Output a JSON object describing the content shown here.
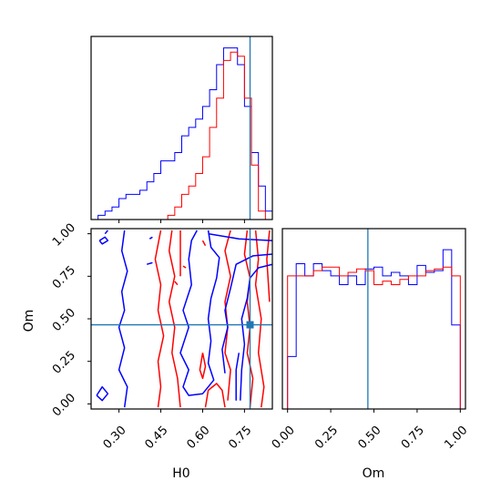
{
  "chart_data": {
    "type": "corner",
    "colors": {
      "series_a": "#0000ff",
      "series_b": "#ff0000",
      "truth": "#1f77b4"
    },
    "truth": {
      "H0": 0.77,
      "Om": 0.465
    },
    "panels": [
      {
        "id": "h0_hist",
        "type": "histogram",
        "xlim": [
          0.2,
          0.85
        ],
        "bins": [
          0.2,
          0.225,
          0.25,
          0.275,
          0.3,
          0.325,
          0.35,
          0.375,
          0.4,
          0.425,
          0.45,
          0.475,
          0.5,
          0.525,
          0.55,
          0.575,
          0.6,
          0.625,
          0.65,
          0.675,
          0.7,
          0.725,
          0.75,
          0.775,
          0.8,
          0.825,
          0.85
        ],
        "series": [
          {
            "color": "blue",
            "heights": [
              0,
              1,
              2,
              3,
              5,
              6,
              6,
              7,
              9,
              11,
              14,
              14,
              16,
              20,
              22,
              24,
              27,
              31,
              37,
              41,
              41,
              37,
              27,
              16,
              8,
              2
            ]
          },
          {
            "color": "red",
            "heights": [
              0,
              0,
              0,
              0,
              0,
              0,
              0,
              0,
              0,
              0,
              0,
              1,
              3,
              6,
              8,
              11,
              15,
              22,
              29,
              38,
              40,
              39,
              29,
              13,
              2,
              0
            ]
          }
        ]
      },
      {
        "id": "contours",
        "type": "contour",
        "xlim": [
          0.2,
          0.85
        ],
        "ylim": [
          -0.03,
          1.03
        ],
        "blue_paths": [
          [
            [
              0.25,
              1.0
            ],
            [
              0.26,
              1.02
            ]
          ],
          [
            [
              0.23,
              0.96
            ],
            [
              0.25,
              0.98
            ],
            [
              0.26,
              0.96
            ],
            [
              0.24,
              0.94
            ],
            [
              0.23,
              0.96
            ]
          ],
          [
            [
              0.32,
              1.02
            ],
            [
              0.31,
              0.9
            ],
            [
              0.33,
              0.78
            ],
            [
              0.31,
              0.66
            ],
            [
              0.32,
              0.55
            ],
            [
              0.3,
              0.45
            ],
            [
              0.32,
              0.33
            ],
            [
              0.3,
              0.2
            ],
            [
              0.33,
              0.1
            ],
            [
              0.32,
              -0.02
            ]
          ],
          [
            [
              0.22,
              0.05
            ],
            [
              0.24,
              0.02
            ],
            [
              0.26,
              0.06
            ],
            [
              0.24,
              0.1
            ],
            [
              0.22,
              0.05
            ]
          ],
          [
            [
              0.4,
              0.82
            ],
            [
              0.42,
              0.83
            ]
          ],
          [
            [
              0.41,
              0.97
            ],
            [
              0.42,
              0.98
            ]
          ],
          [
            [
              0.62,
              1.02
            ],
            [
              0.63,
              0.92
            ],
            [
              0.66,
              0.86
            ],
            [
              0.65,
              0.74
            ],
            [
              0.63,
              0.62
            ],
            [
              0.62,
              0.5
            ],
            [
              0.63,
              0.37
            ],
            [
              0.62,
              0.24
            ],
            [
              0.64,
              0.14
            ],
            [
              0.6,
              0.06
            ],
            [
              0.55,
              0.05
            ],
            [
              0.53,
              0.1
            ],
            [
              0.55,
              0.2
            ],
            [
              0.52,
              0.3
            ],
            [
              0.55,
              0.45
            ],
            [
              0.53,
              0.55
            ],
            [
              0.56,
              0.7
            ],
            [
              0.55,
              0.85
            ],
            [
              0.56,
              0.96
            ],
            [
              0.58,
              1.02
            ]
          ],
          [
            [
              0.62,
              1.0
            ],
            [
              0.73,
              0.97
            ],
            [
              0.85,
              0.96
            ]
          ],
          [
            [
              0.68,
              0.18
            ],
            [
              0.67,
              0.32
            ],
            [
              0.69,
              0.45
            ],
            [
              0.68,
              0.55
            ],
            [
              0.7,
              0.68
            ],
            [
              0.72,
              0.82
            ],
            [
              0.78,
              0.87
            ],
            [
              0.85,
              0.88
            ]
          ],
          [
            [
              0.735,
              0.02
            ],
            [
              0.74,
              0.2
            ],
            [
              0.75,
              0.35
            ],
            [
              0.74,
              0.5
            ],
            [
              0.76,
              0.62
            ],
            [
              0.77,
              0.74
            ],
            [
              0.8,
              0.8
            ],
            [
              0.85,
              0.82
            ]
          ],
          [
            [
              0.72,
              0.02
            ],
            [
              0.72,
              0.2
            ],
            [
              0.73,
              0.3
            ]
          ]
        ],
        "red_paths": [
          [
            [
              0.44,
              -0.02
            ],
            [
              0.45,
              0.1
            ],
            [
              0.44,
              0.25
            ],
            [
              0.46,
              0.4
            ],
            [
              0.44,
              0.55
            ],
            [
              0.45,
              0.7
            ],
            [
              0.43,
              0.85
            ],
            [
              0.45,
              1.02
            ]
          ],
          [
            [
              0.49,
              1.02
            ],
            [
              0.48,
              0.9
            ],
            [
              0.5,
              0.75
            ],
            [
              0.48,
              0.6
            ],
            [
              0.5,
              0.45
            ],
            [
              0.49,
              0.3
            ],
            [
              0.51,
              0.15
            ],
            [
              0.52,
              -0.02
            ]
          ],
          [
            [
              0.52,
              1.02
            ],
            [
              0.52,
              0.75
            ]
          ],
          [
            [
              0.5,
              0.72
            ],
            [
              0.51,
              0.7
            ]
          ],
          [
            [
              0.53,
              0.81
            ],
            [
              0.54,
              0.8
            ]
          ],
          [
            [
              0.6,
              0.96
            ],
            [
              0.61,
              0.93
            ]
          ],
          [
            [
              0.6,
              0.3
            ],
            [
              0.59,
              0.2
            ],
            [
              0.6,
              0.15
            ],
            [
              0.61,
              0.22
            ],
            [
              0.6,
              0.3
            ]
          ],
          [
            [
              0.61,
              -0.02
            ],
            [
              0.62,
              0.08
            ],
            [
              0.65,
              0.12
            ],
            [
              0.67,
              0.08
            ],
            [
              0.68,
              -0.02
            ]
          ],
          [
            [
              0.7,
              1.02
            ],
            [
              0.68,
              0.9
            ],
            [
              0.7,
              0.75
            ],
            [
              0.68,
              0.6
            ],
            [
              0.69,
              0.45
            ],
            [
              0.68,
              0.3
            ],
            [
              0.7,
              0.2
            ],
            [
              0.69,
              0.02
            ]
          ],
          [
            [
              0.76,
              1.02
            ],
            [
              0.75,
              0.88
            ],
            [
              0.77,
              0.74
            ],
            [
              0.76,
              0.6
            ],
            [
              0.77,
              0.45
            ],
            [
              0.76,
              0.3
            ],
            [
              0.78,
              0.15
            ],
            [
              0.77,
              -0.02
            ]
          ],
          [
            [
              0.79,
              1.02
            ],
            [
              0.8,
              0.85
            ],
            [
              0.79,
              0.7
            ],
            [
              0.81,
              0.5
            ],
            [
              0.8,
              0.3
            ],
            [
              0.82,
              0.1
            ],
            [
              0.81,
              -0.02
            ]
          ],
          [
            [
              0.84,
              1.02
            ],
            [
              0.83,
              0.85
            ],
            [
              0.84,
              0.6
            ]
          ]
        ]
      },
      {
        "id": "om_hist",
        "type": "histogram",
        "xlim": [
          -0.03,
          1.03
        ],
        "bins": [
          0.0,
          0.05,
          0.1,
          0.15,
          0.2,
          0.25,
          0.3,
          0.35,
          0.4,
          0.45,
          0.5,
          0.55,
          0.6,
          0.65,
          0.7,
          0.75,
          0.8,
          0.85,
          0.9,
          0.95,
          1.0
        ],
        "series": [
          {
            "color": "blue",
            "heights": [
              0.3,
              0.83,
              0.76,
              0.83,
              0.79,
              0.76,
              0.71,
              0.76,
              0.71,
              0.8,
              0.81,
              0.76,
              0.78,
              0.76,
              0.71,
              0.82,
              0.78,
              0.79,
              0.91,
              0.48
            ]
          },
          {
            "color": "red",
            "heights": [
              0.76,
              0.76,
              0.76,
              0.79,
              0.81,
              0.81,
              0.76,
              0.78,
              0.8,
              0.79,
              0.71,
              0.73,
              0.71,
              0.74,
              0.76,
              0.76,
              0.79,
              0.8,
              0.81,
              0.76
            ]
          }
        ]
      }
    ],
    "h0_xticks": [
      "0.30",
      "0.45",
      "0.60",
      "0.75"
    ],
    "om_yticks": [
      "0.00",
      "0.25",
      "0.50",
      "0.75",
      "1.00"
    ],
    "om_xticks": [
      "0.00",
      "0.25",
      "0.50",
      "0.75",
      "1.00"
    ],
    "labels": {
      "xlabel_contour": "H0",
      "ylabel_contour": "Om",
      "xlabel_om": "Om"
    }
  }
}
